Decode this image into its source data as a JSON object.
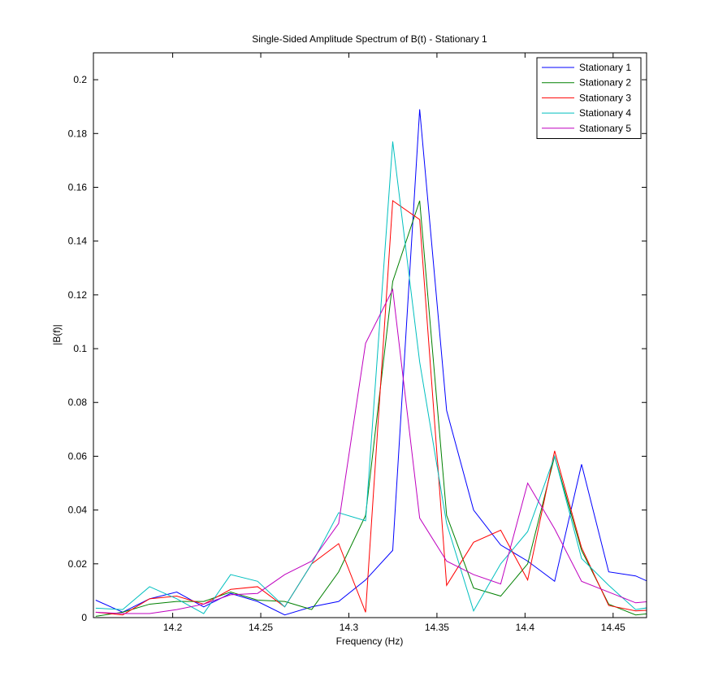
{
  "chart_data": {
    "type": "line",
    "title": "Single-Sided Amplitude Spectrum of B(t) - Stationary 1",
    "x_label": "Frequency (Hz)",
    "y_label": "|B(f)|",
    "x": [
      14.1563,
      14.1716,
      14.1869,
      14.2023,
      14.2176,
      14.2329,
      14.2482,
      14.2636,
      14.2789,
      14.2942,
      14.3095,
      14.3249,
      14.3402,
      14.3555,
      14.3708,
      14.3862,
      14.4015,
      14.4168,
      14.4321,
      14.4475,
      14.4628,
      14.4781
    ],
    "series": [
      {
        "name": "Stationary 1",
        "color": "#0000ff",
        "values": [
          0.0065,
          0.002,
          0.007,
          0.0095,
          0.004,
          0.009,
          0.006,
          0.001,
          0.004,
          0.006,
          0.014,
          0.025,
          0.189,
          0.077,
          0.04,
          0.027,
          0.021,
          0.0135,
          0.057,
          0.017,
          0.0155,
          0.011
        ]
      },
      {
        "name": "Stationary 2",
        "color": "#008000",
        "values": [
          0.0005,
          0.002,
          0.005,
          0.006,
          0.006,
          0.0095,
          0.0065,
          0.006,
          0.003,
          0.017,
          0.038,
          0.125,
          0.155,
          0.038,
          0.011,
          0.008,
          0.02,
          0.06,
          0.025,
          0.005,
          0.001,
          0.002
        ]
      },
      {
        "name": "Stationary 3",
        "color": "#ff0000",
        "values": [
          0.002,
          0.001,
          0.007,
          0.008,
          0.005,
          0.0105,
          0.0115,
          0.004,
          0.02,
          0.0275,
          0.002,
          0.155,
          0.148,
          0.012,
          0.028,
          0.0325,
          0.014,
          0.062,
          0.026,
          0.0045,
          0.0025,
          0.003
        ]
      },
      {
        "name": "Stationary 4",
        "color": "#00bfbf",
        "values": [
          0.0035,
          0.003,
          0.0115,
          0.007,
          0.0015,
          0.016,
          0.0135,
          0.004,
          0.02,
          0.039,
          0.036,
          0.177,
          0.095,
          0.035,
          0.0025,
          0.02,
          0.032,
          0.06,
          0.022,
          0.012,
          0.003,
          0.0045
        ]
      },
      {
        "name": "Stationary 5",
        "color": "#bf00bf",
        "values": [
          0.002,
          0.0015,
          0.0015,
          0.003,
          0.005,
          0.0085,
          0.009,
          0.016,
          0.021,
          0.035,
          0.102,
          0.122,
          0.037,
          0.021,
          0.016,
          0.0125,
          0.05,
          0.033,
          0.0135,
          0.0095,
          0.0055,
          0.0065
        ]
      }
    ],
    "xlim": [
      14.155,
      14.469
    ],
    "ylim": [
      0,
      0.21
    ],
    "xticks": [
      14.2,
      14.25,
      14.3,
      14.35,
      14.4,
      14.45
    ],
    "yticks": [
      0,
      0.02,
      0.04,
      0.06,
      0.08,
      0.1,
      0.12,
      0.14,
      0.16,
      0.18,
      0.2
    ],
    "grid": false,
    "legend": "top-right"
  }
}
